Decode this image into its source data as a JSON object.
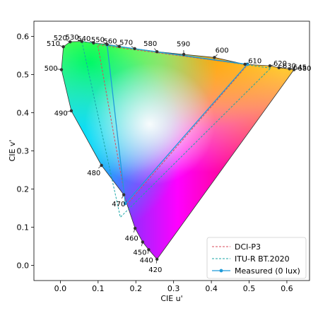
{
  "chart_data": {
    "type": "scatter",
    "title": "",
    "xlabel": "CIE u'",
    "ylabel": "CIE v'",
    "xlim": [
      -0.07,
      0.66
    ],
    "ylim": [
      -0.04,
      0.64
    ],
    "xticks": [
      0.0,
      0.1,
      0.2,
      0.3,
      0.4,
      0.5,
      0.6
    ],
    "yticks": [
      0.0,
      0.1,
      0.2,
      0.3,
      0.4,
      0.5,
      0.6
    ],
    "grid": false,
    "legend_position": "lower-right",
    "spectral_locus_labels": [
      {
        "wavelength": "420",
        "u": 0.256,
        "v": 0.016
      },
      {
        "wavelength": "440",
        "u": 0.234,
        "v": 0.041
      },
      {
        "wavelength": "450",
        "u": 0.218,
        "v": 0.061
      },
      {
        "wavelength": "460",
        "u": 0.198,
        "v": 0.097
      },
      {
        "wavelength": "470",
        "u": 0.168,
        "v": 0.185
      },
      {
        "wavelength": "480",
        "u": 0.109,
        "v": 0.262
      },
      {
        "wavelength": "490",
        "u": 0.029,
        "v": 0.405
      },
      {
        "wavelength": "500",
        "u": 0.003,
        "v": 0.513
      },
      {
        "wavelength": "510",
        "u": 0.008,
        "v": 0.573
      },
      {
        "wavelength": "520",
        "u": 0.026,
        "v": 0.586
      },
      {
        "wavelength": "530",
        "u": 0.057,
        "v": 0.587
      },
      {
        "wavelength": "540",
        "u": 0.088,
        "v": 0.583
      },
      {
        "wavelength": "550",
        "u": 0.124,
        "v": 0.579
      },
      {
        "wavelength": "560",
        "u": 0.156,
        "v": 0.574
      },
      {
        "wavelength": "570",
        "u": 0.197,
        "v": 0.568
      },
      {
        "wavelength": "580",
        "u": 0.256,
        "v": 0.56
      },
      {
        "wavelength": "590",
        "u": 0.327,
        "v": 0.553
      },
      {
        "wavelength": "600",
        "u": 0.408,
        "v": 0.545
      },
      {
        "wavelength": "610",
        "u": 0.489,
        "v": 0.527
      },
      {
        "wavelength": "620",
        "u": 0.555,
        "v": 0.523
      },
      {
        "wavelength": "630",
        "u": 0.579,
        "v": 0.518
      },
      {
        "wavelength": "645",
        "u": 0.607,
        "v": 0.515
      },
      {
        "wavelength": "680",
        "u": 0.619,
        "v": 0.513
      }
    ],
    "series": [
      {
        "name": "DCI-P3",
        "style": "dashed",
        "color": "#d94a5a",
        "u": [
          0.496,
          0.099,
          0.175,
          0.496
        ],
        "v": [
          0.526,
          0.578,
          0.158,
          0.526
        ]
      },
      {
        "name": "ITU-R BT.2020",
        "style": "dashed",
        "color": "#1aa6a6",
        "u": [
          0.557,
          0.057,
          0.159,
          0.557
        ],
        "v": [
          0.517,
          0.587,
          0.126,
          0.517
        ]
      },
      {
        "name": "Measured (0 lux)",
        "style": "solid-markers",
        "color": "#1f9bd9",
        "u": [
          0.495,
          0.124,
          0.172,
          0.495
        ],
        "v": [
          0.527,
          0.578,
          0.162,
          0.527
        ]
      }
    ]
  }
}
